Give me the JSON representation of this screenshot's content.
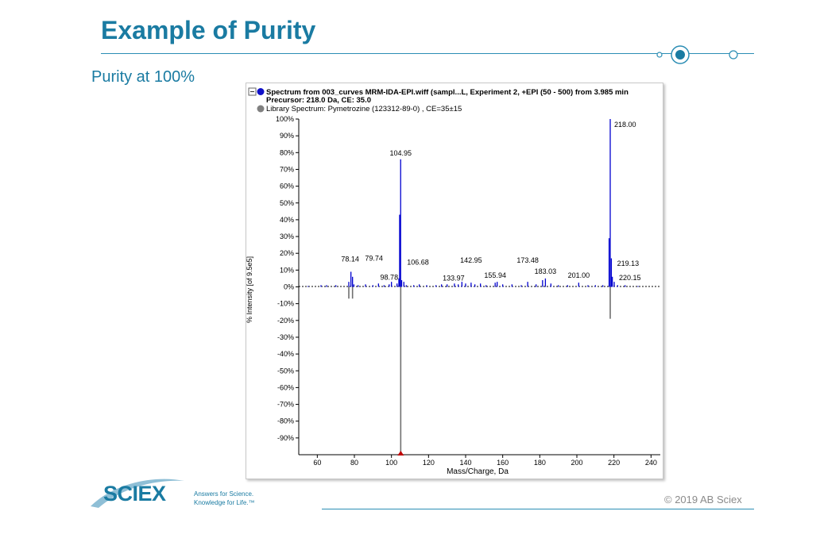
{
  "slide": {
    "title": "Example of Purity",
    "subtitle": "Purity at 100%",
    "copyright": "© 2019 AB Sciex",
    "logo_text": "SCIEX",
    "tagline_line1": "Answers for Science.",
    "tagline_line2": "Knowledge for Life.™"
  },
  "colors": {
    "accent": "#1a7ba2",
    "spectrum": "#0000d0",
    "library": "#707070",
    "marker": "#c00000"
  },
  "chart_data": {
    "type": "bar",
    "header_line1": "Spectrum from 003_curves MRM-IDA-EPI.wiff (sampl...L, Experiment 2, +EPI (50 - 500) from 3.985 min",
    "header_line2": "Precursor: 218.0 Da, CE: 35.0",
    "header_line3": "Library Spectrum: Pymetrozine (123312-89-0) , CE=35±15",
    "xlabel": "Mass/Charge, Da",
    "ylabel": "% Intensity [of 9.5e5]",
    "xlim": [
      50,
      245
    ],
    "ylim": [
      -100,
      100
    ],
    "x_ticks": [
      60,
      80,
      100,
      120,
      140,
      160,
      180,
      200,
      220,
      240
    ],
    "y_ticks": [
      100,
      90,
      80,
      70,
      60,
      50,
      40,
      30,
      20,
      10,
      0,
      -10,
      -20,
      -30,
      -40,
      -50,
      -60,
      -70,
      -80,
      -90
    ],
    "series": [
      {
        "name": "Spectrum from 003_curves MRM-IDA-EPI.wiff",
        "x": [
          55,
          62,
          65,
          70,
          77,
          78.14,
          79.0,
          79.74,
          82,
          86,
          90,
          93,
          96,
          98.78,
          100,
          103,
          104.0,
          104.4,
          104.95,
          105.5,
          106.68,
          108,
          112,
          115,
          119,
          124,
          127,
          130,
          133.97,
          136,
          138,
          140,
          142.95,
          145,
          148,
          151,
          155.94,
          157,
          160,
          165,
          170,
          173.48,
          178,
          181.5,
          183.03,
          186,
          190,
          195,
          201.0,
          206,
          210,
          214,
          217.4,
          218.0,
          218.6,
          219.13,
          220.15,
          222,
          226,
          233
        ],
        "y": [
          0.5,
          1,
          1,
          1,
          3,
          9,
          6,
          1.5,
          1,
          1.5,
          1,
          2,
          1,
          1.5,
          3,
          2,
          5,
          43,
          76,
          4,
          3,
          1,
          1,
          1.5,
          1,
          1,
          1.5,
          1.5,
          2,
          1.5,
          3,
          2,
          2.5,
          1.5,
          2,
          1,
          2.5,
          3,
          1.5,
          1.5,
          1,
          3,
          1.5,
          4,
          5,
          2,
          1,
          1,
          2.5,
          1,
          1,
          1,
          29,
          100,
          17,
          6,
          3,
          1,
          1,
          0.5
        ]
      },
      {
        "name": "Library Spectrum: Pymetrozine (123312-89-0)",
        "x": [
          77,
          79,
          105,
          218
        ],
        "y": [
          -7,
          -7,
          -100,
          -19
        ]
      }
    ],
    "annotations": [
      {
        "label": "218.00",
        "x": 218.0,
        "y": 100
      },
      {
        "label": "104.95",
        "x": 104.95,
        "y": 76
      },
      {
        "label": "78.14",
        "x": 78.14,
        "y": 9
      },
      {
        "label": "79.74",
        "x": 79.74,
        "y": 9
      },
      {
        "label": "98.78",
        "x": 98.78,
        "y": 2
      },
      {
        "label": "106.68",
        "x": 106.68,
        "y": 7
      },
      {
        "label": "133.97",
        "x": 133.97,
        "y": 2
      },
      {
        "label": "142.95",
        "x": 142.95,
        "y": 12
      },
      {
        "label": "155.94",
        "x": 155.94,
        "y": 2.5
      },
      {
        "label": "173.48",
        "x": 173.48,
        "y": 12
      },
      {
        "label": "183.03",
        "x": 183.03,
        "y": 5
      },
      {
        "label": "201.00",
        "x": 201.0,
        "y": 2.5
      },
      {
        "label": "219.13",
        "x": 219.13,
        "y": 6
      },
      {
        "label": "220.15",
        "x": 220.15,
        "y": 3
      }
    ],
    "marker_x": 105
  }
}
